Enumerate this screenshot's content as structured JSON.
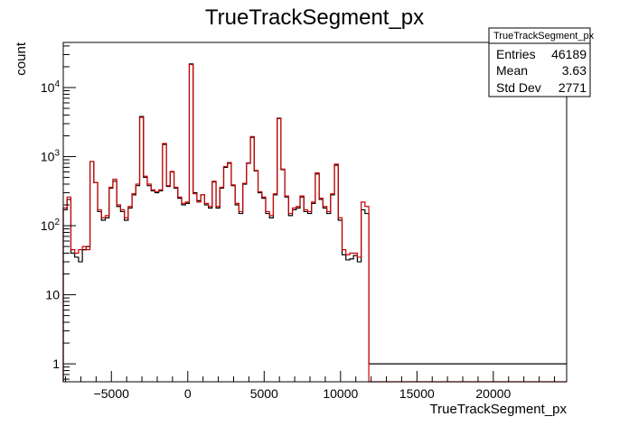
{
  "chart_data": {
    "type": "histogram",
    "title": "TrueTrackSegment_px",
    "xlabel": "TrueTrackSegment_px",
    "ylabel": "count",
    "xlim": [
      -8150,
      24800
    ],
    "ylim": [
      0.55,
      45000
    ],
    "yscale": "log",
    "grid": false,
    "bin_width": 250,
    "x_ticks": [
      -5000,
      0,
      5000,
      10000,
      15000,
      20000
    ],
    "y_ticks": [
      {
        "base": "1",
        "exp": ""
      },
      {
        "base": "10",
        "exp": ""
      },
      {
        "base": "10",
        "exp": "2"
      },
      {
        "base": "10",
        "exp": "3"
      },
      {
        "base": "10",
        "exp": "4"
      }
    ],
    "y_tick_values": [
      1,
      10,
      100,
      1000,
      10000
    ],
    "x_start": -8150,
    "colors": {
      "series1": "#000000",
      "series2": "#cc0000"
    },
    "series": [
      {
        "values": [
          170,
          240,
          40,
          35,
          30,
          45,
          50,
          850,
          420,
          160,
          120,
          130,
          350,
          440,
          190,
          160,
          120,
          180,
          280,
          380,
          3800,
          500,
          380,
          320,
          300,
          320,
          1500,
          370,
          600,
          350,
          250,
          200,
          210,
          22000,
          300,
          230,
          280,
          200,
          180,
          430,
          180,
          350,
          700,
          800,
          380,
          200,
          150,
          400,
          800,
          1900,
          620,
          300,
          250,
          150,
          130,
          280,
          3600,
          650,
          260,
          140,
          170,
          180,
          260,
          160,
          150,
          210,
          560,
          240,
          180,
          150,
          280,
          750,
          120,
          38,
          32,
          33,
          37,
          30,
          170,
          150,
          1
        ],
        "end_value": 1
      },
      {
        "values": [
          180,
          260,
          45,
          40,
          45,
          50,
          45,
          850,
          420,
          170,
          130,
          140,
          360,
          470,
          200,
          170,
          130,
          190,
          290,
          400,
          3700,
          520,
          400,
          330,
          310,
          330,
          1550,
          380,
          610,
          360,
          260,
          210,
          220,
          21500,
          290,
          220,
          280,
          210,
          190,
          440,
          190,
          360,
          720,
          820,
          390,
          210,
          160,
          410,
          810,
          1950,
          630,
          310,
          260,
          160,
          140,
          290,
          3550,
          660,
          270,
          150,
          180,
          190,
          270,
          170,
          160,
          220,
          580,
          250,
          190,
          160,
          290,
          780,
          130,
          45,
          38,
          40,
          40,
          35,
          220,
          190
        ],
        "end_value": 0.55
      }
    ]
  },
  "stats": {
    "title": "TrueTrackSegment_px",
    "rows": [
      {
        "label": "Entries",
        "value": "46189"
      },
      {
        "label": "Mean",
        "value": "3.63"
      },
      {
        "label": "Std Dev",
        "value": "2771"
      }
    ]
  }
}
